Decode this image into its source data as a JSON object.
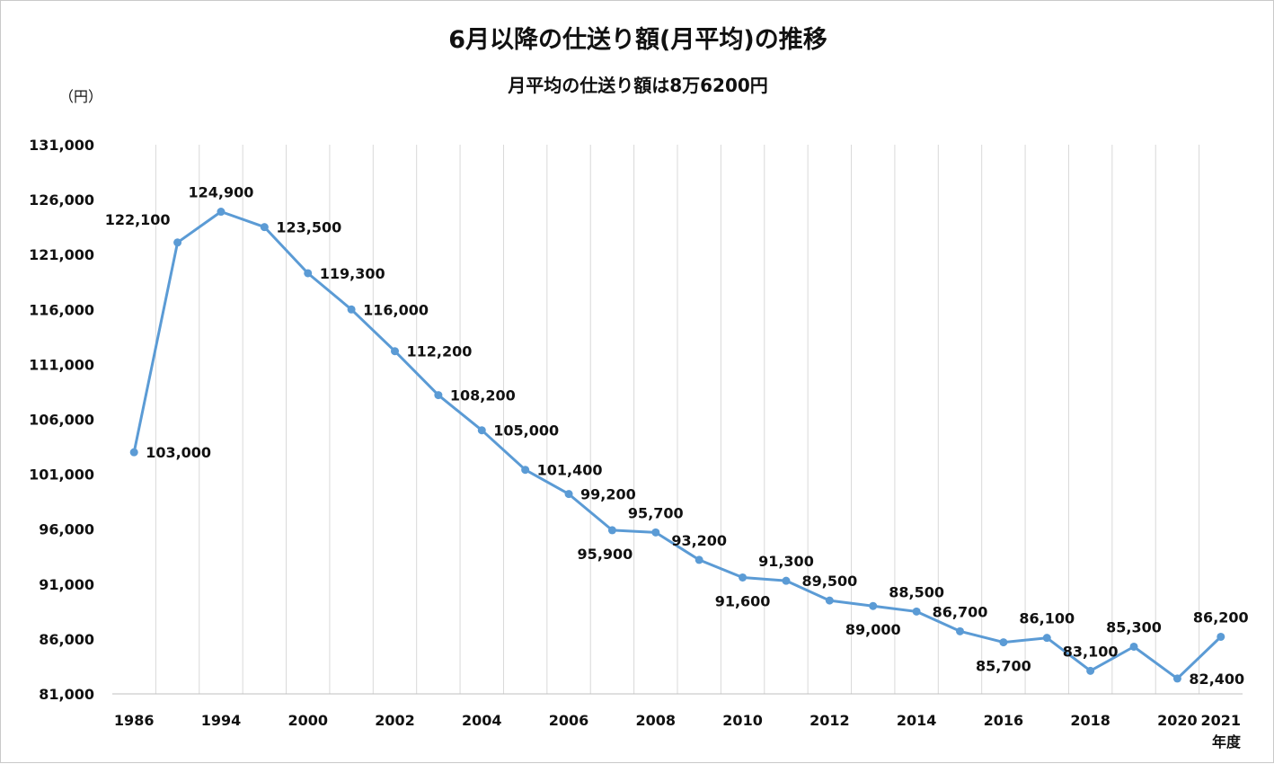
{
  "chart_data": {
    "type": "line",
    "title": "6月以降の仕送り額(月平均)の推移",
    "subtitle": "月平均の仕送り額は8万6200円",
    "ylabel": "（円）",
    "xlabel": "年度",
    "ylim": [
      81000,
      131000
    ],
    "y_ticks": [
      81000,
      86000,
      91000,
      96000,
      101000,
      106000,
      111000,
      116000,
      121000,
      126000,
      131000
    ],
    "y_tick_labels": [
      "81,000",
      "86,000",
      "91,000",
      "96,000",
      "101,000",
      "106,000",
      "111,000",
      "116,000",
      "121,000",
      "126,000",
      "131,000"
    ],
    "grid": "vertical",
    "categories": [
      "1986",
      "",
      "1994",
      "",
      "2000",
      "",
      "2002",
      "",
      "2004",
      "",
      "2006",
      "",
      "2008",
      "",
      "2010",
      "",
      "2012",
      "",
      "2014",
      "",
      "2016",
      "",
      "2018",
      "",
      "2020",
      "2021"
    ],
    "values": [
      103000,
      122100,
      124900,
      123500,
      119300,
      116000,
      112200,
      108200,
      105000,
      101400,
      99200,
      95900,
      95700,
      93200,
      91600,
      91300,
      89500,
      89000,
      88500,
      86700,
      85700,
      86100,
      83100,
      85300,
      82400,
      86200
    ],
    "data_labels": [
      "103,000",
      "122,100",
      "124,900",
      "123,500",
      "119,300",
      "116,000",
      "112,200",
      "108,200",
      "105,000",
      "101,400",
      "99,200",
      "95,900",
      "95,700",
      "93,200",
      "91,600",
      "91,300",
      "89,500",
      "89,000",
      "88,500",
      "86,700",
      "85,700",
      "86,100",
      "83,100",
      "85,300",
      "82,400",
      "86,200"
    ],
    "label_side": [
      "right",
      "left",
      "above",
      "right",
      "right",
      "right",
      "right",
      "right",
      "right",
      "right",
      "right",
      "below-left",
      "above",
      "above",
      "below",
      "above",
      "above",
      "below",
      "above",
      "above",
      "below",
      "above",
      "above",
      "above",
      "right",
      "above"
    ],
    "colors": {
      "line": "#5b9bd5",
      "grid": "#d9d9d9"
    }
  }
}
